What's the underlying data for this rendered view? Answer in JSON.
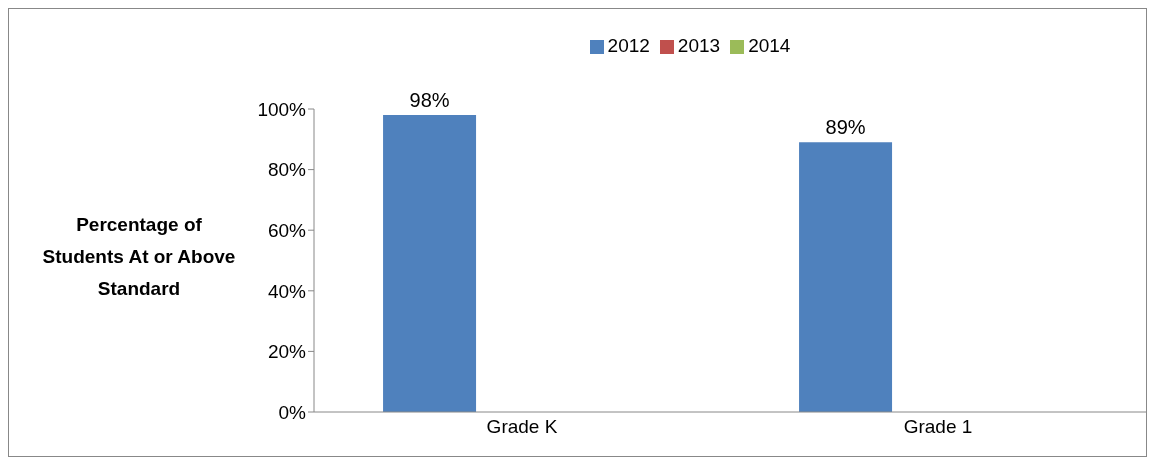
{
  "chart_data": {
    "type": "bar",
    "ylabel": "Percentage of Students At or Above Standard",
    "categories": [
      "Grade K",
      "Grade 1"
    ],
    "series": [
      {
        "name": "2012",
        "color": "#4f81bd",
        "values": [
          98,
          89
        ],
        "value_labels": [
          "98%",
          "89%"
        ]
      },
      {
        "name": "2013",
        "color": "#c0504d",
        "values": [
          null,
          null
        ]
      },
      {
        "name": "2014",
        "color": "#9bbb59",
        "values": [
          null,
          null
        ]
      }
    ],
    "ylim": [
      0,
      100
    ],
    "yticks": [
      {
        "value": 0,
        "label": "0%"
      },
      {
        "value": 20,
        "label": "20%"
      },
      {
        "value": 40,
        "label": "40%"
      },
      {
        "value": 60,
        "label": "60%"
      },
      {
        "value": 80,
        "label": "80%"
      },
      {
        "value": 100,
        "label": "100%"
      }
    ],
    "grid": false,
    "legend": "top"
  }
}
